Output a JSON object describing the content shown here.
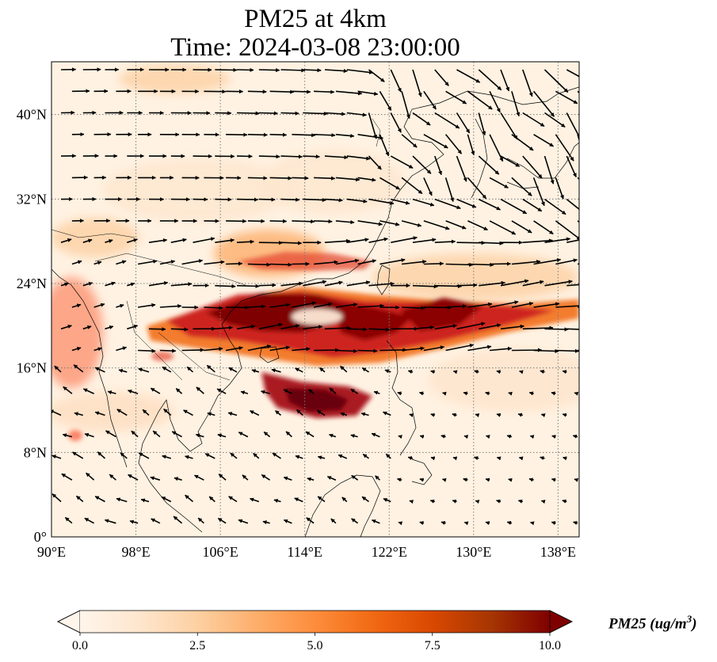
{
  "title": "PM25 at 4km",
  "subtitle": "Time: 2024-03-08 23:00:00",
  "map": {
    "lon_range": [
      90,
      140
    ],
    "lat_range": [
      0,
      45
    ],
    "lon_ticks": [
      {
        "value": 90,
        "label": "90°E"
      },
      {
        "value": 98,
        "label": "98°E"
      },
      {
        "value": 106,
        "label": "106°E"
      },
      {
        "value": 114,
        "label": "114°E"
      },
      {
        "value": 122,
        "label": "122°E"
      },
      {
        "value": 130,
        "label": "130°E"
      },
      {
        "value": 138,
        "label": "138°E"
      }
    ],
    "lat_ticks": [
      {
        "value": 0,
        "label": "0°"
      },
      {
        "value": 8,
        "label": "8°N"
      },
      {
        "value": 16,
        "label": "16°N"
      },
      {
        "value": 24,
        "label": "24°N"
      },
      {
        "value": 32,
        "label": "32°N"
      },
      {
        "value": 40,
        "label": "40°N"
      }
    ],
    "grid": "dotted",
    "colors": {
      "field_low": "#fff5eb",
      "field_mid": "#fdb06c",
      "field_high": "#7f0000",
      "coast": "#000000",
      "grid": "#7a7a7a"
    }
  },
  "colorbar": {
    "min": 0.0,
    "max": 10.0,
    "ticks": [
      {
        "value": 0.0,
        "label": "0.0"
      },
      {
        "value": 2.5,
        "label": "2.5"
      },
      {
        "value": 5.0,
        "label": "5.0"
      },
      {
        "value": 7.5,
        "label": "7.5"
      },
      {
        "value": 10.0,
        "label": "10.0"
      }
    ],
    "label_text": "PM25 (ug/m",
    "label_exp": "3",
    "label_close": ")",
    "colors": [
      "#fff5eb",
      "#fee6ce",
      "#fdd0a2",
      "#fdae6b",
      "#fd8d3c",
      "#f16913",
      "#d94801",
      "#a63603",
      "#7f0000"
    ]
  }
}
